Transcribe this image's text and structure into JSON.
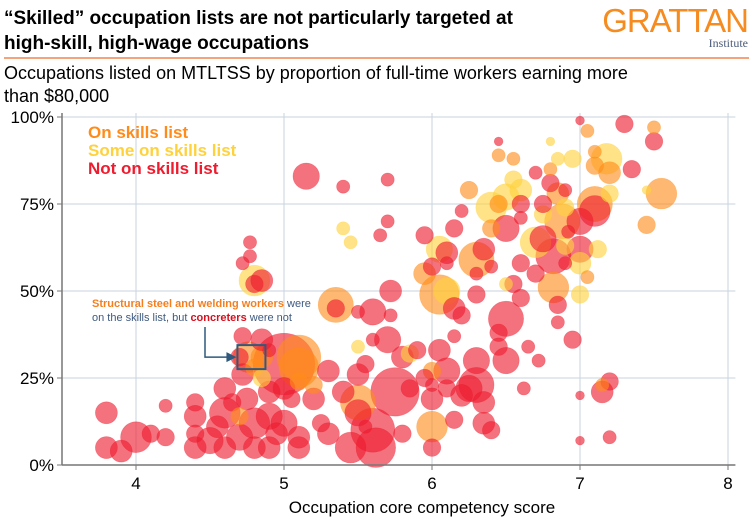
{
  "header": {
    "title": "“Skilled” occupation lists are not particularly targeted at high-skill, high-wage occupations",
    "title_lines": [
      "“Skilled” occupation lists are not particularly targeted at",
      "high-skill, high-wage occupations"
    ],
    "logo_main": "GRATTAN",
    "logo_sub": "Institute",
    "subtitle": "Occupations listed on MTLTSS by proportion of full-time workers earning more than $80,000"
  },
  "colors": {
    "on_list": "#ff8c1a",
    "some_on_list": "#ffd23c",
    "not_on_list": "#ee1c2e",
    "grid": "#c9d3e0",
    "axis": "#777777",
    "logo": "#f68b1f",
    "rule": "#f4a37a",
    "annotation_box": "#2f5a7e"
  },
  "chart_data": {
    "type": "scatter",
    "title": "Occupations listed on MTLTSS by proportion of full-time workers earning more than $80,000",
    "xlabel": "Occupation core competency score",
    "ylabel": "",
    "xlim": [
      3.5,
      8.05
    ],
    "ylim": [
      0,
      100
    ],
    "x_ticks": [
      4,
      5,
      6,
      7,
      8
    ],
    "x_tick_labels": [
      "4",
      "5",
      "6",
      "7",
      "8"
    ],
    "y_ticks": [
      0,
      25,
      50,
      75,
      100
    ],
    "y_tick_labels": [
      "0%",
      "25%",
      "50%",
      "75%",
      "100%"
    ],
    "grid": true,
    "legend_position": "top-left",
    "legend": [
      {
        "name": "On skills list",
        "group": "on"
      },
      {
        "name": "Some on skills list",
        "group": "some"
      },
      {
        "name": "Not on skills list",
        "group": "not"
      }
    ],
    "annotation": {
      "highlight": "Structural steel and welding workers",
      "text_mid": " were",
      "line2_pre": "on the skills list, but ",
      "highlight2": "concreters",
      "line2_post": " were not",
      "target_x": 4.78,
      "target_y": 31
    },
    "points": [
      {
        "x": 3.8,
        "y": 15,
        "s": 5,
        "g": "not"
      },
      {
        "x": 3.8,
        "y": 5,
        "s": 5,
        "g": "not"
      },
      {
        "x": 3.9,
        "y": 4,
        "s": 5,
        "g": "not"
      },
      {
        "x": 4.0,
        "y": 8,
        "s": 7,
        "g": "not"
      },
      {
        "x": 4.1,
        "y": 9,
        "s": 4,
        "g": "not"
      },
      {
        "x": 4.2,
        "y": 17,
        "s": 3,
        "g": "not"
      },
      {
        "x": 4.2,
        "y": 8,
        "s": 4,
        "g": "not"
      },
      {
        "x": 4.4,
        "y": 14,
        "s": 5,
        "g": "not"
      },
      {
        "x": 4.4,
        "y": 5,
        "s": 5,
        "g": "not"
      },
      {
        "x": 4.4,
        "y": 9,
        "s": 4,
        "g": "not"
      },
      {
        "x": 4.4,
        "y": 18,
        "s": 4,
        "g": "not"
      },
      {
        "x": 4.5,
        "y": 7,
        "s": 6,
        "g": "not"
      },
      {
        "x": 4.55,
        "y": 11,
        "s": 5,
        "g": "not"
      },
      {
        "x": 4.6,
        "y": 5,
        "s": 5,
        "g": "not"
      },
      {
        "x": 4.6,
        "y": 15,
        "s": 7,
        "g": "not"
      },
      {
        "x": 4.6,
        "y": 22,
        "s": 5,
        "g": "not"
      },
      {
        "x": 4.65,
        "y": 18,
        "s": 4,
        "g": "not"
      },
      {
        "x": 4.7,
        "y": 8,
        "s": 6,
        "g": "not"
      },
      {
        "x": 4.7,
        "y": 14,
        "s": 4,
        "g": "on"
      },
      {
        "x": 4.72,
        "y": 26,
        "s": 5,
        "g": "not"
      },
      {
        "x": 4.75,
        "y": 19,
        "s": 5,
        "g": "not"
      },
      {
        "x": 4.8,
        "y": 5,
        "s": 5,
        "g": "not"
      },
      {
        "x": 4.8,
        "y": 12,
        "s": 7,
        "g": "not"
      },
      {
        "x": 4.8,
        "y": 28,
        "s": 4,
        "g": "on"
      },
      {
        "x": 4.76,
        "y": 31,
        "s": 7,
        "g": "on"
      },
      {
        "x": 4.85,
        "y": 31,
        "s": 5,
        "g": "on"
      },
      {
        "x": 4.7,
        "y": 31,
        "s": 4,
        "g": "not"
      },
      {
        "x": 4.72,
        "y": 37,
        "s": 4,
        "g": "not"
      },
      {
        "x": 4.85,
        "y": 36,
        "s": 5,
        "g": "not"
      },
      {
        "x": 4.9,
        "y": 5,
        "s": 5,
        "g": "not"
      },
      {
        "x": 4.9,
        "y": 14,
        "s": 6,
        "g": "not"
      },
      {
        "x": 4.9,
        "y": 21,
        "s": 5,
        "g": "not"
      },
      {
        "x": 4.95,
        "y": 9,
        "s": 5,
        "g": "not"
      },
      {
        "x": 5.0,
        "y": 29,
        "s": 14,
        "g": "not"
      },
      {
        "x": 5.1,
        "y": 31,
        "s": 10,
        "g": "on"
      },
      {
        "x": 5.1,
        "y": 28,
        "s": 9,
        "g": "on"
      },
      {
        "x": 5.0,
        "y": 12,
        "s": 6,
        "g": "not"
      },
      {
        "x": 5.05,
        "y": 19,
        "s": 4,
        "g": "not"
      },
      {
        "x": 5.1,
        "y": 8,
        "s": 5,
        "g": "not"
      },
      {
        "x": 5.1,
        "y": 5,
        "s": 5,
        "g": "not"
      },
      {
        "x": 5.0,
        "y": 22,
        "s": 5,
        "g": "not"
      },
      {
        "x": 5.1,
        "y": 24,
        "s": 4,
        "g": "on"
      },
      {
        "x": 5.15,
        "y": 83,
        "s": 6,
        "g": "not"
      },
      {
        "x": 4.8,
        "y": 53,
        "s": 7,
        "g": "some"
      },
      {
        "x": 4.8,
        "y": 52,
        "s": 4,
        "g": "not"
      },
      {
        "x": 4.85,
        "y": 53,
        "s": 5,
        "g": "not"
      },
      {
        "x": 4.77,
        "y": 60,
        "s": 3,
        "g": "not"
      },
      {
        "x": 4.72,
        "y": 58,
        "s": 3,
        "g": "not"
      },
      {
        "x": 4.77,
        "y": 64,
        "s": 3,
        "g": "not"
      },
      {
        "x": 5.2,
        "y": 19,
        "s": 5,
        "g": "not"
      },
      {
        "x": 5.25,
        "y": 12,
        "s": 4,
        "g": "not"
      },
      {
        "x": 5.3,
        "y": 27,
        "s": 5,
        "g": "not"
      },
      {
        "x": 5.3,
        "y": 9,
        "s": 5,
        "g": "not"
      },
      {
        "x": 5.35,
        "y": 46,
        "s": 8,
        "g": "on"
      },
      {
        "x": 5.35,
        "y": 45,
        "s": 4,
        "g": "not"
      },
      {
        "x": 5.4,
        "y": 80,
        "s": 3,
        "g": "not"
      },
      {
        "x": 5.4,
        "y": 68,
        "s": 3,
        "g": "some"
      },
      {
        "x": 5.4,
        "y": 21,
        "s": 5,
        "g": "not"
      },
      {
        "x": 5.45,
        "y": 5,
        "s": 7,
        "g": "not"
      },
      {
        "x": 5.5,
        "y": 18,
        "s": 8,
        "g": "on"
      },
      {
        "x": 5.5,
        "y": 15,
        "s": 6,
        "g": "not"
      },
      {
        "x": 5.5,
        "y": 26,
        "s": 5,
        "g": "not"
      },
      {
        "x": 5.5,
        "y": 34,
        "s": 3,
        "g": "some"
      },
      {
        "x": 5.55,
        "y": 29,
        "s": 4,
        "g": "not"
      },
      {
        "x": 5.6,
        "y": 44,
        "s": 6,
        "g": "not"
      },
      {
        "x": 5.6,
        "y": 36,
        "s": 3,
        "g": "not"
      },
      {
        "x": 5.6,
        "y": 10,
        "s": 10,
        "g": "not"
      },
      {
        "x": 5.62,
        "y": 5,
        "s": 9,
        "g": "not"
      },
      {
        "x": 5.7,
        "y": 82,
        "s": 3,
        "g": "not"
      },
      {
        "x": 5.7,
        "y": 70,
        "s": 3,
        "g": "not"
      },
      {
        "x": 5.72,
        "y": 50,
        "s": 5,
        "g": "not"
      },
      {
        "x": 5.72,
        "y": 43,
        "s": 3,
        "g": "not"
      },
      {
        "x": 5.7,
        "y": 36,
        "s": 6,
        "g": "not"
      },
      {
        "x": 5.75,
        "y": 21,
        "s": 11,
        "g": "not"
      },
      {
        "x": 5.8,
        "y": 31,
        "s": 5,
        "g": "not"
      },
      {
        "x": 5.8,
        "y": 9,
        "s": 4,
        "g": "not"
      },
      {
        "x": 5.85,
        "y": 32,
        "s": 4,
        "g": "some"
      },
      {
        "x": 5.9,
        "y": 33,
        "s": 4,
        "g": "not"
      },
      {
        "x": 5.95,
        "y": 66,
        "s": 4,
        "g": "not"
      },
      {
        "x": 6.0,
        "y": 11,
        "s": 7,
        "g": "on"
      },
      {
        "x": 6.0,
        "y": 5,
        "s": 4,
        "g": "not"
      },
      {
        "x": 6.0,
        "y": 19,
        "s": 5,
        "g": "not"
      },
      {
        "x": 6.0,
        "y": 27,
        "s": 4,
        "g": "on"
      },
      {
        "x": 6.0,
        "y": 23,
        "s": 3,
        "g": "not"
      },
      {
        "x": 6.05,
        "y": 33,
        "s": 5,
        "g": "not"
      },
      {
        "x": 6.1,
        "y": 22,
        "s": 4,
        "g": "not"
      },
      {
        "x": 6.1,
        "y": 27,
        "s": 6,
        "g": "not"
      },
      {
        "x": 6.15,
        "y": 13,
        "s": 4,
        "g": "not"
      },
      {
        "x": 6.15,
        "y": 37,
        "s": 3,
        "g": "not"
      },
      {
        "x": 6.2,
        "y": 43,
        "s": 4,
        "g": "not"
      },
      {
        "x": 6.2,
        "y": 20,
        "s": 5,
        "g": "not"
      },
      {
        "x": 6.25,
        "y": 22,
        "s": 6,
        "g": "not"
      },
      {
        "x": 6.3,
        "y": 23,
        "s": 8,
        "g": "not"
      },
      {
        "x": 6.3,
        "y": 30,
        "s": 6,
        "g": "not"
      },
      {
        "x": 6.35,
        "y": 18,
        "s": 5,
        "g": "not"
      },
      {
        "x": 6.35,
        "y": 12,
        "s": 5,
        "g": "not"
      },
      {
        "x": 6.4,
        "y": 10,
        "s": 4,
        "g": "not"
      },
      {
        "x": 6.3,
        "y": 55,
        "s": 3,
        "g": "not"
      },
      {
        "x": 6.3,
        "y": 49,
        "s": 4,
        "g": "not"
      },
      {
        "x": 6.3,
        "y": 59,
        "s": 8,
        "g": "on"
      },
      {
        "x": 6.35,
        "y": 62,
        "s": 5,
        "g": "not"
      },
      {
        "x": 6.4,
        "y": 68,
        "s": 4,
        "g": "on"
      },
      {
        "x": 6.4,
        "y": 57,
        "s": 3,
        "g": "not"
      },
      {
        "x": 6.45,
        "y": 38,
        "s": 4,
        "g": "not"
      },
      {
        "x": 6.45,
        "y": 34,
        "s": 4,
        "g": "not"
      },
      {
        "x": 6.45,
        "y": 75,
        "s": 4,
        "g": "on"
      },
      {
        "x": 6.5,
        "y": 30,
        "s": 6,
        "g": "not"
      },
      {
        "x": 6.5,
        "y": 42,
        "s": 8,
        "g": "not"
      },
      {
        "x": 6.5,
        "y": 52,
        "s": 3,
        "g": "some"
      },
      {
        "x": 6.5,
        "y": 77,
        "s": 6,
        "g": "some"
      },
      {
        "x": 6.55,
        "y": 52,
        "s": 4,
        "g": "not"
      },
      {
        "x": 6.6,
        "y": 79,
        "s": 5,
        "g": "some"
      },
      {
        "x": 6.6,
        "y": 75,
        "s": 4,
        "g": "not"
      },
      {
        "x": 6.6,
        "y": 48,
        "s": 4,
        "g": "not"
      },
      {
        "x": 6.6,
        "y": 58,
        "s": 4,
        "g": "not"
      },
      {
        "x": 6.62,
        "y": 22,
        "s": 3,
        "g": "not"
      },
      {
        "x": 6.65,
        "y": 34,
        "s": 3,
        "g": "not"
      },
      {
        "x": 6.7,
        "y": 64,
        "s": 7,
        "g": "some"
      },
      {
        "x": 6.7,
        "y": 55,
        "s": 4,
        "g": "not"
      },
      {
        "x": 6.72,
        "y": 30,
        "s": 3,
        "g": "not"
      },
      {
        "x": 6.75,
        "y": 72,
        "s": 4,
        "g": "some"
      },
      {
        "x": 6.75,
        "y": 65,
        "s": 6,
        "g": "not"
      },
      {
        "x": 6.75,
        "y": 75,
        "s": 4,
        "g": "not"
      },
      {
        "x": 6.8,
        "y": 81,
        "s": 4,
        "g": "not"
      },
      {
        "x": 6.8,
        "y": 93,
        "s": 2,
        "g": "some"
      },
      {
        "x": 6.82,
        "y": 51,
        "s": 7,
        "g": "on"
      },
      {
        "x": 6.82,
        "y": 60,
        "s": 8,
        "g": "not"
      },
      {
        "x": 6.85,
        "y": 41,
        "s": 3,
        "g": "not"
      },
      {
        "x": 6.85,
        "y": 46,
        "s": 4,
        "g": "not"
      },
      {
        "x": 6.88,
        "y": 70,
        "s": 8,
        "g": "on"
      },
      {
        "x": 6.9,
        "y": 79,
        "s": 3,
        "g": "not"
      },
      {
        "x": 6.9,
        "y": 63,
        "s": 4,
        "g": "some"
      },
      {
        "x": 6.92,
        "y": 67,
        "s": 3,
        "g": "not"
      },
      {
        "x": 6.95,
        "y": 36,
        "s": 4,
        "g": "not"
      },
      {
        "x": 6.95,
        "y": 88,
        "s": 4,
        "g": "some"
      },
      {
        "x": 7.0,
        "y": 99,
        "s": 2,
        "g": "not"
      },
      {
        "x": 7.0,
        "y": 62,
        "s": 6,
        "g": "not"
      },
      {
        "x": 7.0,
        "y": 58,
        "s": 5,
        "g": "some"
      },
      {
        "x": 7.0,
        "y": 20,
        "s": 2,
        "g": "not"
      },
      {
        "x": 7.0,
        "y": 7,
        "s": 2,
        "g": "not"
      },
      {
        "x": 7.0,
        "y": 49,
        "s": 4,
        "g": "some"
      },
      {
        "x": 7.0,
        "y": 70,
        "s": 6,
        "g": "not"
      },
      {
        "x": 7.05,
        "y": 96,
        "s": 3,
        "g": "on"
      },
      {
        "x": 7.05,
        "y": 54,
        "s": 3,
        "g": "on"
      },
      {
        "x": 7.1,
        "y": 90,
        "s": 3,
        "g": "on"
      },
      {
        "x": 7.1,
        "y": 86,
        "s": 4,
        "g": "on"
      },
      {
        "x": 7.1,
        "y": 75,
        "s": 8,
        "g": "on"
      },
      {
        "x": 7.1,
        "y": 73,
        "s": 7,
        "g": "not"
      },
      {
        "x": 7.12,
        "y": 62,
        "s": 4,
        "g": "some"
      },
      {
        "x": 7.15,
        "y": 23,
        "s": 3,
        "g": "on"
      },
      {
        "x": 7.15,
        "y": 21,
        "s": 5,
        "g": "not"
      },
      {
        "x": 7.18,
        "y": 88,
        "s": 7,
        "g": "some"
      },
      {
        "x": 7.2,
        "y": 84,
        "s": 5,
        "g": "on"
      },
      {
        "x": 7.2,
        "y": 78,
        "s": 4,
        "g": "some"
      },
      {
        "x": 7.2,
        "y": 24,
        "s": 4,
        "g": "not"
      },
      {
        "x": 7.2,
        "y": 8,
        "s": 3,
        "g": "not"
      },
      {
        "x": 7.3,
        "y": 98,
        "s": 4,
        "g": "not"
      },
      {
        "x": 7.35,
        "y": 85,
        "s": 4,
        "g": "not"
      },
      {
        "x": 7.45,
        "y": 79,
        "s": 2,
        "g": "some"
      },
      {
        "x": 7.5,
        "y": 97,
        "s": 3,
        "g": "on"
      },
      {
        "x": 7.5,
        "y": 93,
        "s": 4,
        "g": "not"
      },
      {
        "x": 7.55,
        "y": 78,
        "s": 7,
        "g": "on"
      },
      {
        "x": 7.45,
        "y": 69,
        "s": 4,
        "g": "on"
      },
      {
        "x": 6.45,
        "y": 89,
        "s": 3,
        "g": "on"
      },
      {
        "x": 6.55,
        "y": 88,
        "s": 3,
        "g": "on"
      },
      {
        "x": 6.45,
        "y": 93,
        "s": 2,
        "g": "not"
      },
      {
        "x": 6.55,
        "y": 82,
        "s": 4,
        "g": "some"
      },
      {
        "x": 6.6,
        "y": 71,
        "s": 3,
        "g": "not"
      },
      {
        "x": 6.7,
        "y": 84,
        "s": 3,
        "g": "not"
      },
      {
        "x": 6.8,
        "y": 85,
        "s": 3,
        "g": "on"
      },
      {
        "x": 6.85,
        "y": 78,
        "s": 5,
        "g": "on"
      },
      {
        "x": 6.85,
        "y": 88,
        "s": 3,
        "g": "some"
      },
      {
        "x": 6.25,
        "y": 79,
        "s": 4,
        "g": "on"
      },
      {
        "x": 6.2,
        "y": 73,
        "s": 3,
        "g": "not"
      },
      {
        "x": 6.15,
        "y": 68,
        "s": 4,
        "g": "not"
      },
      {
        "x": 6.05,
        "y": 62,
        "s": 6,
        "g": "some"
      },
      {
        "x": 6.1,
        "y": 61,
        "s": 5,
        "g": "not"
      },
      {
        "x": 6.1,
        "y": 58,
        "s": 3,
        "g": "not"
      },
      {
        "x": 6.0,
        "y": 57,
        "s": 4,
        "g": "not"
      },
      {
        "x": 5.95,
        "y": 55,
        "s": 5,
        "g": "on"
      },
      {
        "x": 6.05,
        "y": 49,
        "s": 9,
        "g": "on"
      },
      {
        "x": 6.1,
        "y": 50,
        "s": 6,
        "g": "some"
      },
      {
        "x": 6.15,
        "y": 45,
        "s": 5,
        "g": "not"
      },
      {
        "x": 6.5,
        "y": 68,
        "s": 6,
        "g": "not"
      },
      {
        "x": 6.4,
        "y": 74,
        "s": 7,
        "g": "some"
      },
      {
        "x": 6.9,
        "y": 74,
        "s": 4,
        "g": "some"
      },
      {
        "x": 6.9,
        "y": 58,
        "s": 3,
        "g": "not"
      },
      {
        "x": 5.45,
        "y": 64,
        "s": 3,
        "g": "some"
      },
      {
        "x": 5.65,
        "y": 66,
        "s": 3,
        "g": "not"
      },
      {
        "x": 5.5,
        "y": 44,
        "s": 3,
        "g": "not"
      },
      {
        "x": 4.85,
        "y": 25,
        "s": 4,
        "g": "some"
      },
      {
        "x": 4.9,
        "y": 33,
        "s": 3,
        "g": "not"
      },
      {
        "x": 5.2,
        "y": 23,
        "s": 4,
        "g": "on"
      },
      {
        "x": 5.55,
        "y": 11,
        "s": 3,
        "g": "not"
      },
      {
        "x": 5.85,
        "y": 22,
        "s": 4,
        "g": "not"
      },
      {
        "x": 5.95,
        "y": 25,
        "s": 4,
        "g": "not"
      }
    ]
  },
  "annotation_text": {
    "line1_highlight": "Structural steel and welding workers",
    "line1_rest": " were",
    "line2_pre": "on the skills list, but ",
    "line2_highlight": "concreters",
    "line2_post": " were not"
  }
}
